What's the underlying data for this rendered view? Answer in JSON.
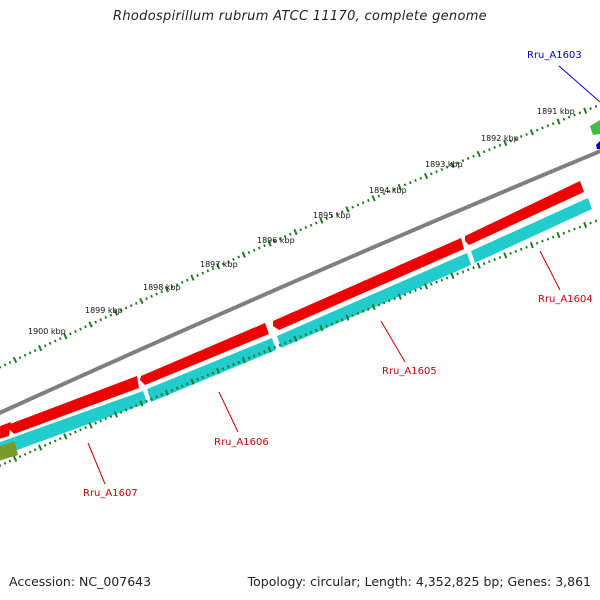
{
  "title": "Rhodospirillum rubrum ATCC 11170, complete genome",
  "footer": {
    "accession": "Accession: NC_007643",
    "summary": "Topology: circular; Length: 4,352,825 bp; Genes: 3,861"
  },
  "scale_labels": [
    "1891 kbp",
    "1892 kbp",
    "1893 kbp",
    "1894 kbp",
    "1895 kbp",
    "1896 kbp",
    "1897 kbp",
    "1898 kbp",
    "1899 kbp",
    "1900 kbp"
  ],
  "genes": [
    {
      "name": "Rru_A1603",
      "color": "#0000cc"
    },
    {
      "name": "Rru_A1604",
      "color": "#cc0000"
    },
    {
      "name": "Rru_A1605",
      "color": "#cc0000"
    },
    {
      "name": "Rru_A1606",
      "color": "#cc0000"
    },
    {
      "name": "Rru_A1607",
      "color": "#cc0000"
    }
  ],
  "colors": {
    "backbone": "#7f7f7f",
    "cds_reverse": "#ee0000",
    "cds_track": "#22cccc",
    "scale_ticks": "#1e7b1e",
    "green_feature": "#44bb44",
    "olive_feature": "#7a9a2a",
    "blue_feature": "#0000cc"
  }
}
